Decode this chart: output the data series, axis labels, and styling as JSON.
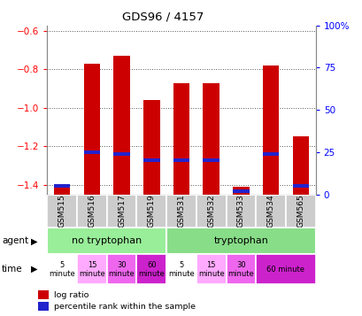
{
  "title": "GDS96 / 4157",
  "samples": [
    "GSM515",
    "GSM516",
    "GSM517",
    "GSM519",
    "GSM531",
    "GSM532",
    "GSM533",
    "GSM534",
    "GSM565"
  ],
  "log_ratios": [
    -1.41,
    -0.77,
    -0.73,
    -0.96,
    -0.87,
    -0.87,
    -1.41,
    -0.78,
    -1.15
  ],
  "percentile_ranks": [
    5,
    25,
    24,
    20,
    20,
    20,
    2,
    24,
    5
  ],
  "ylim_left": [
    -1.45,
    -0.57
  ],
  "ylim_right": [
    0,
    100
  ],
  "yticks_left": [
    -1.4,
    -1.2,
    -1.0,
    -0.8,
    -0.6
  ],
  "yticks_right": [
    0,
    25,
    50,
    75,
    100
  ],
  "bar_color": "#cc0000",
  "percentile_color": "#2222cc",
  "bar_width": 0.55,
  "header_color": "#cccccc",
  "background_color": "#ffffff",
  "dotted_grid_color": "#555555",
  "agent_no_trp_color": "#99ee99",
  "agent_trp_color": "#88dd88",
  "time_colors": [
    "#ffffff",
    "#ffaaff",
    "#ee66ee",
    "#cc22cc",
    "#ffffff",
    "#ffaaff",
    "#ee66ee",
    "#cc22cc"
  ],
  "time_labels": [
    "5\nminute",
    "15\nminute",
    "30\nminute",
    "60\nminute",
    "5\nminute",
    "15\nminute",
    "30\nminute",
    "60 minute"
  ],
  "legend_red": "#cc0000",
  "legend_blue": "#2222cc"
}
